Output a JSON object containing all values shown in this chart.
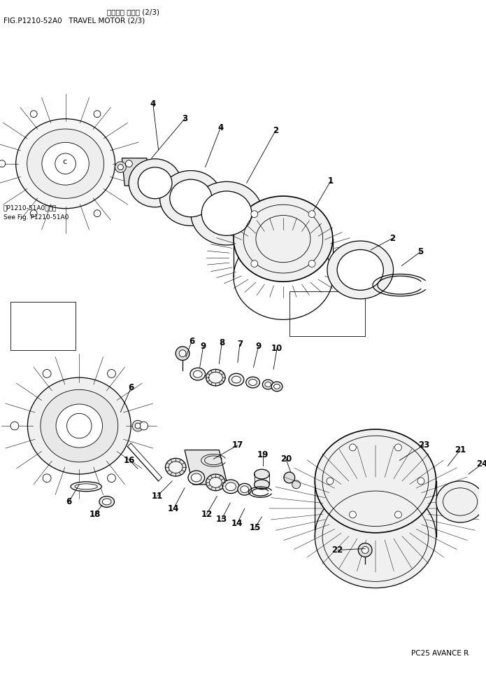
{
  "bg_color": "#ffffff",
  "line_color": "#000000",
  "fig_width": 6.95,
  "fig_height": 9.61,
  "dpi": 100,
  "header_line1": "シャココ モータ (2/3)",
  "header_line2": "FIG.P1210-52A0   TRAVEL MOTOR (2/3)",
  "footer_text": "PC25 AVANCE R",
  "see_fig_line1": "図P1210-51A0図参照",
  "see_fig_line2": "See Fig. P1210-51A0"
}
